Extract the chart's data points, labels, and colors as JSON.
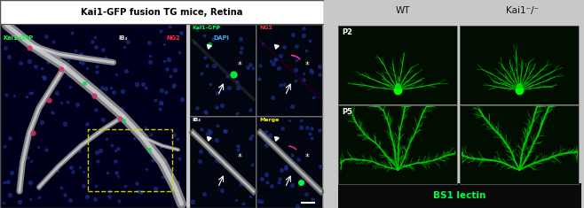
{
  "title_text": "Kai1-GFP fusion TG mice, Retina",
  "title_bg": "#ffffff",
  "title_color": "#000000",
  "microscopy_bg": "#00001a",
  "legend_labels": [
    "Kai1-GFP",
    "IB₄",
    "NG2",
    "DAPI"
  ],
  "legend_colors": [
    "#00ff44",
    "#e0e0e0",
    "#ff3333",
    "#44aaff"
  ],
  "sub_labels": [
    "Kai1-GFP",
    "NG2",
    "IB₄",
    "Merge"
  ],
  "sub_label_colors": [
    "#00ff44",
    "#ff3333",
    "#e0e0e0",
    "#ffff00"
  ],
  "right_col_labels": [
    "WT",
    "Kai1⁻/⁻"
  ],
  "right_col_label_color": "#111111",
  "row_labels": [
    "P2",
    "P5"
  ],
  "row_label_color": "#ffffff",
  "bottom_label": "BS1 lectin",
  "bottom_label_color": "#00ff44",
  "bottom_bg": "#0a0a0a",
  "figure_bg": "#c8c8c8",
  "panel_bg": "#000510",
  "nuclei_color": "#1a2e88",
  "zoom_border_color": "#cccc00",
  "right_panel_bg": "#c8c8c8",
  "cell_bg": "#001000",
  "left_border_color": "#333333"
}
